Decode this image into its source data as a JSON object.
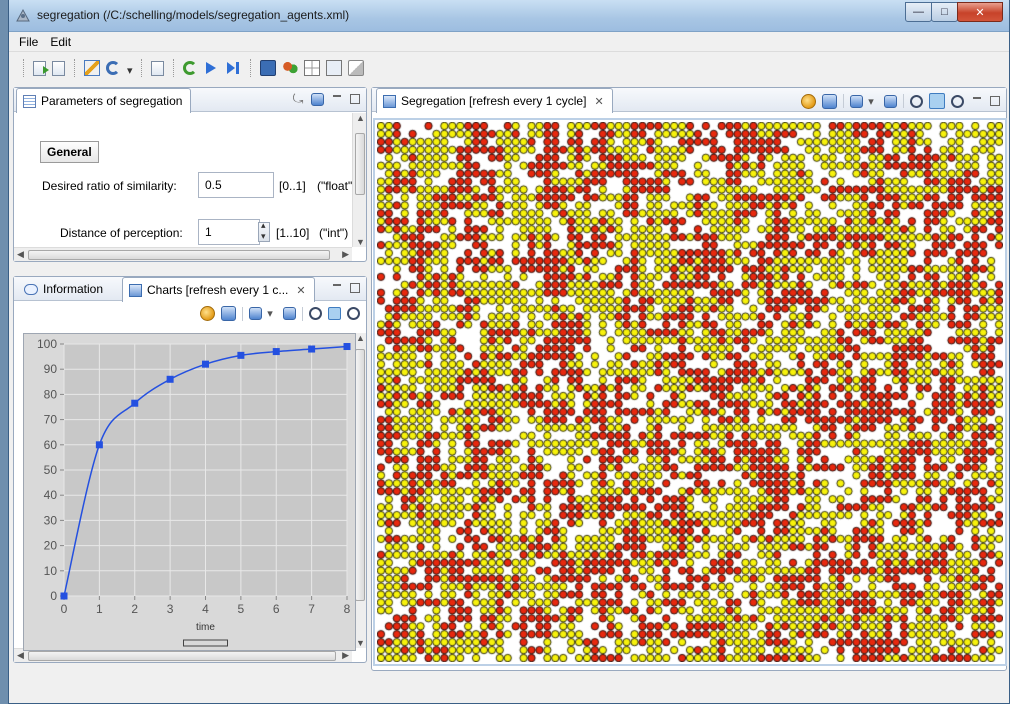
{
  "window": {
    "title": "segregation (/C:/schelling/models/segregation_agents.xml)",
    "buttons": {
      "minimize": "—",
      "maximize": "□",
      "close": "✕"
    }
  },
  "menu": [
    "File",
    "Edit"
  ],
  "toolbar_icons": [
    "load-icon",
    "reload-model-icon",
    "edit-icon",
    "navigate-icon",
    "inspect-icon",
    "restart-icon",
    "play-icon",
    "step-icon",
    "monitor-icon",
    "agents-icon",
    "grid-icon",
    "snapshot-icon",
    "brush-icon"
  ],
  "parameters_view": {
    "tab_label": "Parameters of segregation",
    "section": "General",
    "params": [
      {
        "label": "Desired ratio of similarity:",
        "value": "0.5",
        "range": "[0..1]",
        "type": "(\"float\""
      },
      {
        "label": "Distance of perception:",
        "value": "1",
        "range": "[1..10]",
        "type": "(\"int\")"
      }
    ]
  },
  "bottom_left_view": {
    "tabs": [
      {
        "label": "Information"
      },
      {
        "label": "Charts [refresh every 1 c..."
      }
    ]
  },
  "chart_data": {
    "type": "line",
    "x": [
      0,
      1,
      2,
      3,
      4,
      5,
      6,
      7,
      8
    ],
    "values": [
      0,
      60,
      76.5,
      86,
      92,
      95.5,
      97,
      98,
      99
    ],
    "xlabel": "time",
    "ylabel": "",
    "xlim": [
      0,
      8
    ],
    "ylim": [
      0,
      100
    ],
    "yticks": [
      0,
      10,
      20,
      30,
      40,
      50,
      60,
      70,
      80,
      90,
      100
    ],
    "xticks": [
      0,
      1,
      2,
      3,
      4,
      5,
      6,
      7,
      8
    ],
    "grid": true,
    "line_color": "#2450e0",
    "marker_color": "#2450e0",
    "plot_background": "#c8c8c8"
  },
  "display_view": {
    "tab_label": "Segregation [refresh every 1 cycle]",
    "agent_colors": {
      "group_a": "#e8280e",
      "group_b": "#f7f20c",
      "empty": "#ffffff"
    },
    "grid_density": {
      "red": 0.42,
      "yellow": 0.36
    }
  }
}
